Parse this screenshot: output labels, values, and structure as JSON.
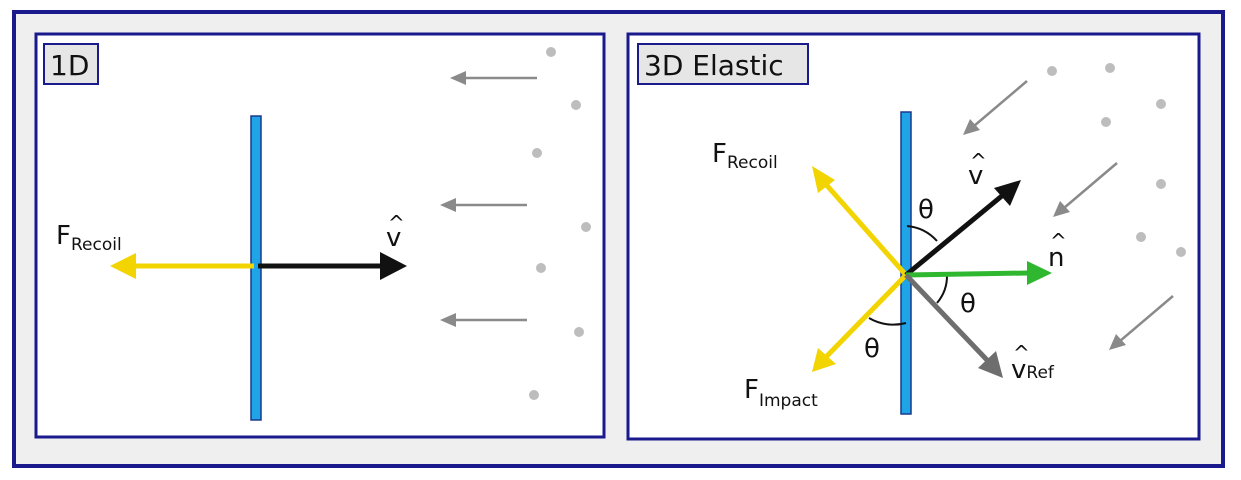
{
  "colors": {
    "frame_border": "#1a1a8c",
    "frame_fill": "#efefef",
    "panel_fill": "#ffffff",
    "plate": "#1fa4e8",
    "velocity": "#111111",
    "recoil_force": "#f2d400",
    "normal": "#2fb82f",
    "reflected": "#6e6e6e",
    "particle": "#bdbdbd",
    "incoming_arrow": "#8a8a8a",
    "title_box": "#e6e6e6"
  },
  "panel_1d": {
    "title": "1D",
    "f_recoil": {
      "main": "F",
      "sub": "Recoil"
    },
    "v_hat": {
      "hat": "^",
      "main": "v"
    }
  },
  "panel_3d": {
    "title": "3D Elastic",
    "f_recoil": {
      "main": "F",
      "sub": "Recoil"
    },
    "f_impact": {
      "main": "F",
      "sub": "Impact"
    },
    "v_hat": {
      "hat": "^",
      "main": "v"
    },
    "n_hat": {
      "hat": "^",
      "main": "n"
    },
    "v_ref": {
      "hat": "^",
      "main": "v",
      "sub": "Ref"
    },
    "theta": "θ"
  }
}
